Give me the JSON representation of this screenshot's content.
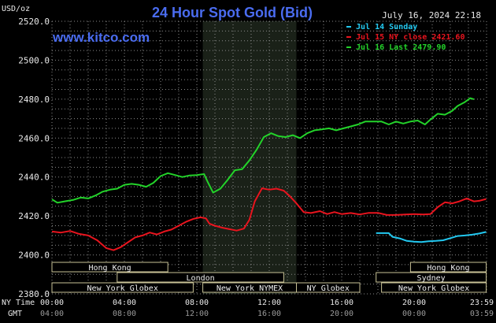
{
  "chart_data": {
    "type": "line",
    "title": "24 Hour Spot Gold (Bid)",
    "watermark": "www.kitco.com",
    "timestamp": "July 16, 2024 22:18",
    "y_unit": "USD/oz",
    "ylim": [
      2380,
      2520
    ],
    "y_ticks": [
      "2520.0",
      "2500.0",
      "2480.0",
      "2460.0",
      "2440.0",
      "2420.0",
      "2400.0",
      "2380.0"
    ],
    "y_tick_values": [
      2520,
      2500,
      2480,
      2460,
      2440,
      2420,
      2400,
      2380
    ],
    "x_label_ny": "NY Time",
    "x_label_gmt": "GMT",
    "x_ticks_ny": [
      "00:00",
      "04:00",
      "08:00",
      "12:00",
      "16:00",
      "20:00",
      "23:59"
    ],
    "x_ticks_gmt": [
      "04:00",
      "08:00",
      "12:00",
      "16:00",
      "20:00",
      "00:00",
      "03:59"
    ],
    "x_tick_hours": [
      0,
      4,
      8,
      12,
      16,
      20,
      23.98
    ],
    "xlim": [
      0,
      24
    ],
    "grid": true,
    "legend_position": "top-right",
    "nymex_shade_hours": [
      8.33,
      13.5
    ],
    "series": [
      {
        "name": "Jul 14 Sunday",
        "color": "#22c8f0",
        "points": [
          [
            17.9,
            2411.2
          ],
          [
            18.6,
            2411.2
          ],
          [
            18.8,
            2409.3
          ],
          [
            19.2,
            2408.5
          ],
          [
            19.6,
            2407.2
          ],
          [
            20.0,
            2406.8
          ],
          [
            20.4,
            2406.6
          ],
          [
            20.8,
            2407.0
          ],
          [
            21.2,
            2407.2
          ],
          [
            21.6,
            2407.5
          ],
          [
            22.0,
            2408.6
          ],
          [
            22.4,
            2409.7
          ],
          [
            22.8,
            2410.0
          ],
          [
            23.2,
            2410.4
          ],
          [
            23.6,
            2411.0
          ],
          [
            23.98,
            2411.8
          ]
        ]
      },
      {
        "name": "Jul 15 NY close 2421.60",
        "color": "#e8141e",
        "points": [
          [
            0,
            2412.0
          ],
          [
            0.5,
            2411.5
          ],
          [
            1.0,
            2412.3
          ],
          [
            1.5,
            2410.8
          ],
          [
            2.0,
            2410.0
          ],
          [
            2.5,
            2407.5
          ],
          [
            3.0,
            2403.5
          ],
          [
            3.4,
            2402.4
          ],
          [
            3.8,
            2404.0
          ],
          [
            4.2,
            2406.5
          ],
          [
            4.6,
            2409.0
          ],
          [
            5.0,
            2410.0
          ],
          [
            5.4,
            2411.5
          ],
          [
            5.8,
            2410.5
          ],
          [
            6.2,
            2412.0
          ],
          [
            6.6,
            2413.0
          ],
          [
            7.0,
            2415.0
          ],
          [
            7.4,
            2417.0
          ],
          [
            7.8,
            2418.5
          ],
          [
            8.2,
            2419.3
          ],
          [
            8.5,
            2418.8
          ],
          [
            8.7,
            2416.0
          ],
          [
            9.0,
            2415.0
          ],
          [
            9.4,
            2414.0
          ],
          [
            9.8,
            2413.2
          ],
          [
            10.2,
            2412.5
          ],
          [
            10.6,
            2413.5
          ],
          [
            10.9,
            2418.0
          ],
          [
            11.2,
            2427.5
          ],
          [
            11.6,
            2434.2
          ],
          [
            12.0,
            2433.5
          ],
          [
            12.4,
            2434.0
          ],
          [
            12.8,
            2433.0
          ],
          [
            13.1,
            2430.5
          ],
          [
            13.5,
            2426.5
          ],
          [
            13.9,
            2422.0
          ],
          [
            14.3,
            2421.5
          ],
          [
            14.8,
            2422.5
          ],
          [
            15.2,
            2421.0
          ],
          [
            15.6,
            2422.0
          ],
          [
            16.0,
            2421.0
          ],
          [
            16.5,
            2421.5
          ],
          [
            17.0,
            2420.8
          ],
          [
            17.5,
            2421.6
          ],
          [
            18.0,
            2421.6
          ],
          [
            18.5,
            2420.5
          ],
          [
            19.0,
            2420.5
          ],
          [
            19.5,
            2420.8
          ],
          [
            20.0,
            2421.0
          ],
          [
            20.5,
            2420.8
          ],
          [
            20.9,
            2421.0
          ],
          [
            21.3,
            2424.5
          ],
          [
            21.7,
            2427.0
          ],
          [
            22.1,
            2426.5
          ],
          [
            22.5,
            2427.5
          ],
          [
            22.9,
            2429.0
          ],
          [
            23.3,
            2427.5
          ],
          [
            23.6,
            2427.8
          ],
          [
            23.98,
            2428.7
          ]
        ]
      },
      {
        "name": "Jul 16 Last 2479.90",
        "color": "#23d32a",
        "points": [
          [
            0,
            2428.5
          ],
          [
            0.3,
            2426.8
          ],
          [
            0.7,
            2427.5
          ],
          [
            1.2,
            2428.3
          ],
          [
            1.6,
            2429.5
          ],
          [
            2.0,
            2429.0
          ],
          [
            2.4,
            2430.5
          ],
          [
            2.8,
            2432.5
          ],
          [
            3.2,
            2433.5
          ],
          [
            3.6,
            2434.0
          ],
          [
            4.0,
            2436.0
          ],
          [
            4.4,
            2436.5
          ],
          [
            4.8,
            2436.0
          ],
          [
            5.2,
            2435.0
          ],
          [
            5.6,
            2437.0
          ],
          [
            6.0,
            2440.5
          ],
          [
            6.4,
            2442.0
          ],
          [
            6.8,
            2441.0
          ],
          [
            7.2,
            2440.0
          ],
          [
            7.6,
            2440.8
          ],
          [
            8.0,
            2441.0
          ],
          [
            8.4,
            2441.5
          ],
          [
            8.6,
            2437.5
          ],
          [
            8.9,
            2432.0
          ],
          [
            9.3,
            2434.0
          ],
          [
            9.7,
            2438.5
          ],
          [
            10.1,
            2443.5
          ],
          [
            10.5,
            2444.0
          ],
          [
            10.9,
            2448.5
          ],
          [
            11.3,
            2454.0
          ],
          [
            11.7,
            2460.5
          ],
          [
            12.1,
            2462.5
          ],
          [
            12.5,
            2461.0
          ],
          [
            12.9,
            2460.5
          ],
          [
            13.3,
            2461.5
          ],
          [
            13.7,
            2460.0
          ],
          [
            14.1,
            2462.5
          ],
          [
            14.5,
            2464.0
          ],
          [
            14.9,
            2464.5
          ],
          [
            15.3,
            2465.0
          ],
          [
            15.7,
            2464.0
          ],
          [
            16.1,
            2465.0
          ],
          [
            16.5,
            2466.0
          ],
          [
            16.9,
            2467.0
          ],
          [
            17.3,
            2468.5
          ],
          [
            17.7,
            2468.5
          ],
          [
            18.2,
            2468.5
          ],
          [
            18.6,
            2467.0
          ],
          [
            19.0,
            2468.5
          ],
          [
            19.4,
            2467.5
          ],
          [
            19.8,
            2468.5
          ],
          [
            20.2,
            2469.0
          ],
          [
            20.6,
            2467.0
          ],
          [
            20.9,
            2469.5
          ],
          [
            21.3,
            2472.5
          ],
          [
            21.7,
            2472.0
          ],
          [
            22.1,
            2474.0
          ],
          [
            22.4,
            2476.5
          ],
          [
            22.8,
            2478.5
          ],
          [
            23.1,
            2480.5
          ],
          [
            23.3,
            2479.9
          ]
        ]
      }
    ],
    "market_sessions": [
      {
        "name": "Hong Kong",
        "row": 0,
        "start": 0,
        "end": 6.4
      },
      {
        "name": "London",
        "row": 1,
        "start": 3.6,
        "end": 12.8
      },
      {
        "name": "New York Globex",
        "row": 2,
        "start": 0,
        "end": 7.8
      },
      {
        "name": "New York NYMEX",
        "row": 2,
        "start": 8.33,
        "end": 13.5
      },
      {
        "name": "NY Globex",
        "row": 2,
        "start": 13.5,
        "end": 17.0
      },
      {
        "name": "Hong Kong",
        "row": 0,
        "start": 19.8,
        "end": 23.98
      },
      {
        "name": "Sydney",
        "row": 1,
        "start": 17.9,
        "end": 23.98
      },
      {
        "name": "New York Globex",
        "row": 2,
        "start": 18.2,
        "end": 23.98
      }
    ]
  }
}
